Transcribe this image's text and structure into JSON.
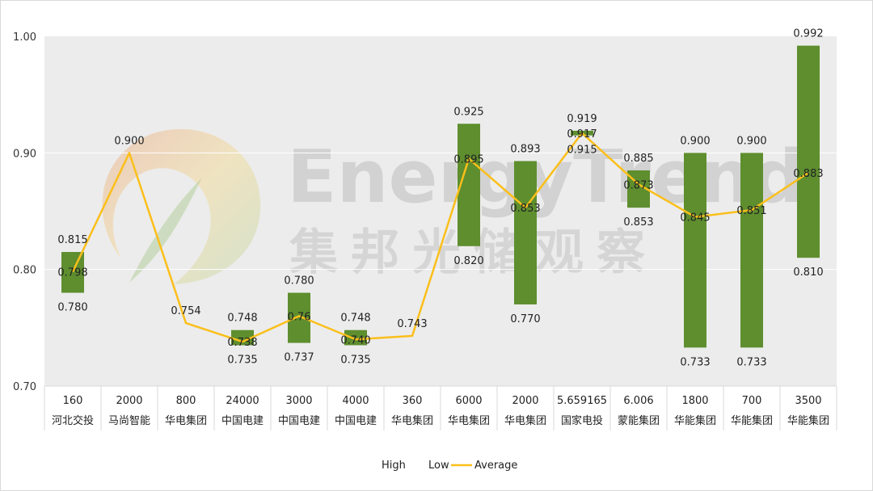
{
  "chart_data": {
    "type": "bar",
    "ylim": [
      0.7,
      1.0
    ],
    "yticks": [
      "0.70",
      "0.80",
      "0.90",
      "1.00"
    ],
    "grid": false,
    "legend_position": "bottom",
    "categories": [
      {
        "top": "160",
        "bottom": "河北交投"
      },
      {
        "top": "2000",
        "bottom": "马尚智能"
      },
      {
        "top": "800",
        "bottom": "华电集团"
      },
      {
        "top": "24000",
        "bottom": "中国电建"
      },
      {
        "top": "3000",
        "bottom": "中国电建"
      },
      {
        "top": "4000",
        "bottom": "中国电建"
      },
      {
        "top": "360",
        "bottom": "华电集团"
      },
      {
        "top": "6000",
        "bottom": "华电集团"
      },
      {
        "top": "2000",
        "bottom": "华电集团"
      },
      {
        "top": "5.659165",
        "bottom": "国家电投"
      },
      {
        "top": "6.006",
        "bottom": "蒙能集团"
      },
      {
        "top": "1800",
        "bottom": "华能集团"
      },
      {
        "top": "700",
        "bottom": "华能集团"
      },
      {
        "top": "3500",
        "bottom": "华能集团"
      }
    ],
    "series": [
      {
        "name": "High",
        "values": [
          0.815,
          0.9,
          0.754,
          0.748,
          0.78,
          0.748,
          0.743,
          0.925,
          0.893,
          0.919,
          0.885,
          0.9,
          0.9,
          0.992
        ],
        "labels": [
          "0.815",
          "0.900",
          "0.754",
          "0.748",
          "0.780",
          "0.748",
          "0.743",
          "0.925",
          "0.893",
          "0.919",
          "0.885",
          "0.900",
          "0.900",
          "0.992"
        ]
      },
      {
        "name": "Low",
        "values": [
          0.78,
          0.9,
          0.754,
          0.735,
          0.737,
          0.735,
          0.743,
          0.82,
          0.77,
          0.915,
          0.853,
          0.733,
          0.733,
          0.81
        ],
        "labels": [
          "0.780",
          "",
          "",
          "0.735",
          "0.737",
          "0.735",
          "",
          "0.820",
          "0.770",
          "0.915",
          "0.853",
          "0.733",
          "0.733",
          "0.810"
        ]
      },
      {
        "name": "Average",
        "values": [
          0.798,
          0.9,
          0.754,
          0.738,
          0.76,
          0.74,
          0.743,
          0.895,
          0.853,
          0.917,
          0.873,
          0.845,
          0.851,
          0.883
        ],
        "labels": [
          "0.798",
          "",
          "",
          "0.738",
          "0.76",
          "0.740",
          "",
          "0.895",
          "0.853",
          "0.917",
          "0.873",
          "0.845",
          "0.851",
          "0.883"
        ]
      }
    ],
    "colors": {
      "bar": "#5e8e2e",
      "line": "#fbbf1a",
      "plot_bg": "#ececec",
      "gridline": "#ffffff"
    }
  },
  "watermark": {
    "en": "EnergyTrend",
    "cn": "集邦光储观察"
  }
}
